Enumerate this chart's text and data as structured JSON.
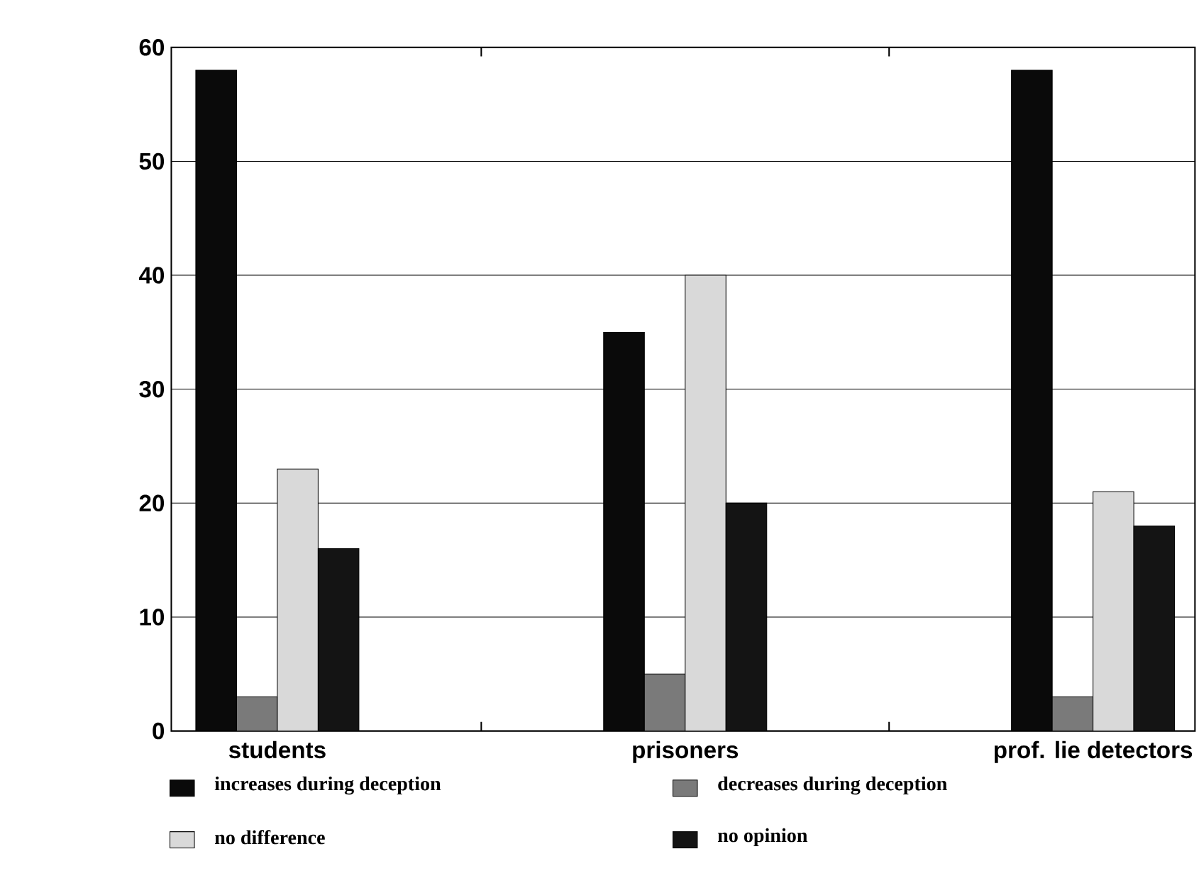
{
  "chart_data": {
    "type": "bar",
    "categories": [
      "students",
      "prisoners",
      "prof. lie detectors"
    ],
    "series": [
      {
        "name": "increases during deception",
        "color": "#0a0a0a",
        "values": [
          58,
          35,
          58
        ]
      },
      {
        "name": "decreases during deception",
        "color": "#7a7a7a",
        "values": [
          3,
          5,
          3
        ]
      },
      {
        "name": "no difference",
        "color": "#d9d9d9",
        "values": [
          23,
          40,
          21
        ]
      },
      {
        "name": "no opinion",
        "color": "#141414",
        "values": [
          16,
          20,
          18
        ]
      }
    ],
    "ylim": [
      0,
      60
    ],
    "yticks": [
      0,
      10,
      20,
      30,
      40,
      50,
      60
    ],
    "grid": "y",
    "legend": "bottom"
  }
}
